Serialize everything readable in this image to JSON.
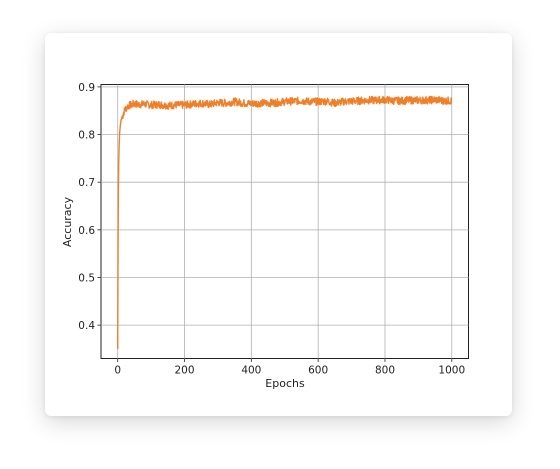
{
  "chart_data": {
    "type": "line",
    "title": "",
    "xlabel": "Epochs",
    "ylabel": "Accuracy",
    "xlim": [
      -50,
      1050
    ],
    "ylim": [
      0.33,
      0.905
    ],
    "xticks": [
      0,
      200,
      400,
      600,
      800,
      1000
    ],
    "xtick_labels": [
      "0",
      "200",
      "400",
      "600",
      "800",
      "1000"
    ],
    "yticks": [
      0.4,
      0.5,
      0.6,
      0.7,
      0.8,
      0.9
    ],
    "ytick_labels": [
      "0.4",
      "0.5",
      "0.6",
      "0.7",
      "0.8",
      "0.9"
    ],
    "grid": true,
    "legend": "none",
    "series": [
      {
        "name": "",
        "color": "#f07f2a",
        "x": [
          0,
          1,
          2,
          3,
          4,
          5,
          6,
          8,
          10,
          12,
          15,
          20,
          25,
          30,
          40,
          50,
          60,
          80,
          100,
          125,
          150,
          175,
          200,
          225,
          250,
          275,
          300,
          325,
          350,
          375,
          400,
          425,
          450,
          475,
          500,
          525,
          550,
          575,
          600,
          625,
          650,
          675,
          700,
          725,
          750,
          775,
          800,
          825,
          850,
          875,
          900,
          925,
          950,
          975,
          1000
        ],
        "y": [
          0.35,
          0.55,
          0.68,
          0.74,
          0.77,
          0.79,
          0.805,
          0.82,
          0.83,
          0.835,
          0.84,
          0.85,
          0.855,
          0.86,
          0.862,
          0.865,
          0.863,
          0.864,
          0.862,
          0.863,
          0.861,
          0.862,
          0.862,
          0.864,
          0.866,
          0.863,
          0.867,
          0.866,
          0.869,
          0.866,
          0.865,
          0.866,
          0.866,
          0.867,
          0.869,
          0.87,
          0.871,
          0.869,
          0.869,
          0.87,
          0.866,
          0.869,
          0.87,
          0.871,
          0.872,
          0.872,
          0.873,
          0.871,
          0.871,
          0.872,
          0.872,
          0.872,
          0.873,
          0.871,
          0.871
        ]
      }
    ]
  }
}
